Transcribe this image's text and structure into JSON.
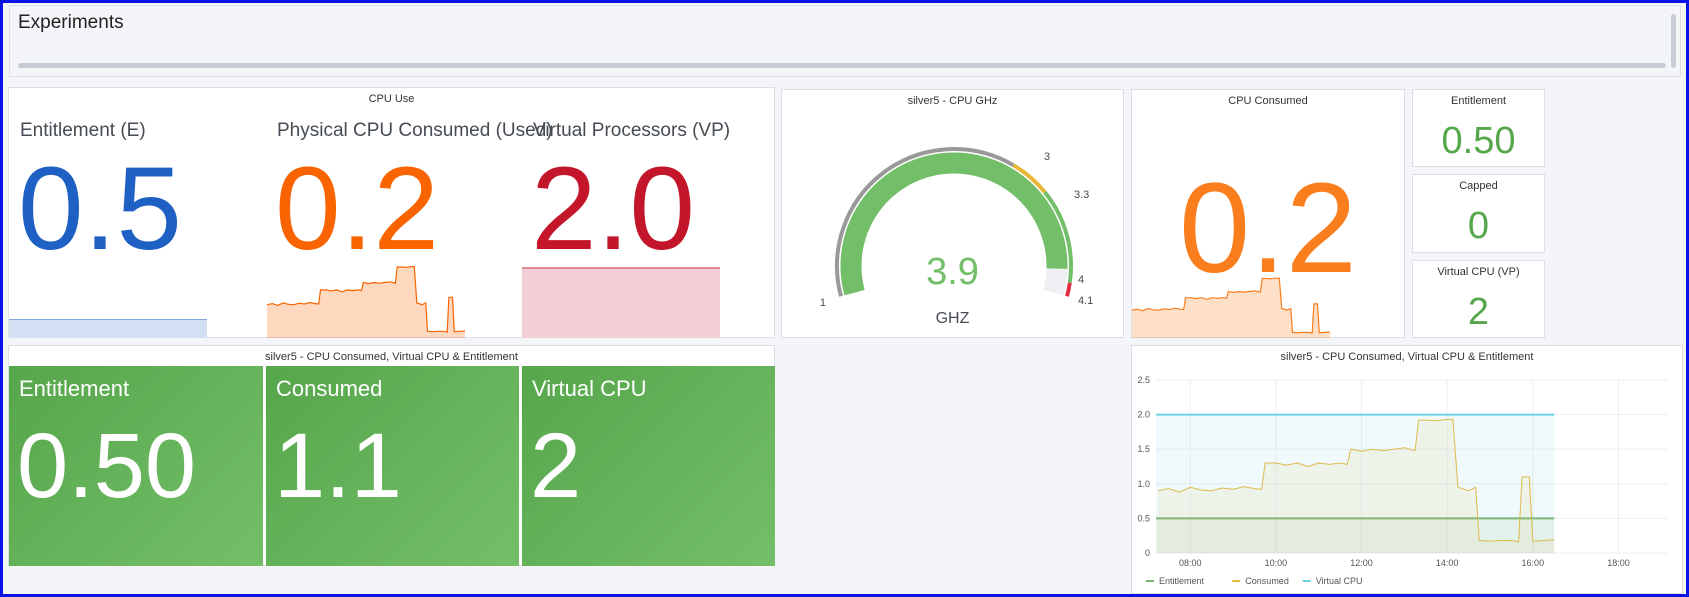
{
  "header": {
    "title": "Experiments"
  },
  "cpu_use": {
    "title": "CPU Use",
    "stats": [
      {
        "label": "Entitlement (E)",
        "value": "0.5",
        "color": "#1f60c4"
      },
      {
        "label": "Physical CPU Consumed (Used)",
        "value": "0.2",
        "color": "#fa6400"
      },
      {
        "label": "Virtual Processors (VP)",
        "value": "2.0",
        "color": "#c4162a"
      }
    ]
  },
  "gauge": {
    "title": "silver5 - CPU GHz",
    "value": "3.9",
    "unit": "GHZ",
    "min": 1,
    "max": 4.1,
    "current": 3.9,
    "thresholds": [
      {
        "from": 1,
        "to": 3,
        "color": "#999999"
      },
      {
        "from": 3,
        "to": 3.3,
        "color": "#eab839"
      },
      {
        "from": 3.3,
        "to": 4,
        "color": "#73bf69"
      },
      {
        "from": 4,
        "to": 4.1,
        "color": "#e02f44"
      }
    ],
    "tick_labels": [
      "1",
      "3",
      "3.3",
      "4",
      "4.1"
    ]
  },
  "consumed_panel": {
    "title": "CPU Consumed",
    "value": "0.2",
    "color": "#fa7e1e"
  },
  "small_stats": [
    {
      "title": "Entitlement",
      "value": "0.50"
    },
    {
      "title": "Capped",
      "value": "0"
    },
    {
      "title": "Virtual CPU (VP)",
      "value": "2"
    }
  ],
  "bottom_stats": {
    "title": "silver5 - CPU Consumed, Virtual CPU & Entitlement",
    "items": [
      {
        "label": "Entitlement",
        "value": "0.50"
      },
      {
        "label": "Consumed",
        "value": "1.1"
      },
      {
        "label": "Virtual CPU",
        "value": "2"
      }
    ]
  },
  "chart_data": {
    "type": "line",
    "title": "silver5 - CPU Consumed, Virtual CPU & Entitlement",
    "x_ticks": [
      "08:00",
      "10:00",
      "12:00",
      "14:00",
      "16:00",
      "18:00"
    ],
    "y_ticks": [
      "0",
      "0.5",
      "1.0",
      "1.5",
      "2.0",
      "2.5"
    ],
    "ylim": [
      0,
      2.5
    ],
    "xlim": [
      "07:12",
      "19:08"
    ],
    "grid": true,
    "legend": "bottom-left",
    "x": [
      "07:15",
      "07:30",
      "07:45",
      "08:00",
      "08:15",
      "08:30",
      "08:45",
      "09:00",
      "09:15",
      "09:30",
      "09:40",
      "09:45",
      "10:00",
      "10:15",
      "10:30",
      "10:45",
      "11:00",
      "11:15",
      "11:30",
      "11:40",
      "11:45",
      "12:00",
      "12:15",
      "12:30",
      "12:45",
      "13:00",
      "13:15",
      "13:20",
      "13:30",
      "13:45",
      "14:00",
      "14:08",
      "14:15",
      "14:30",
      "14:40",
      "14:45",
      "15:00",
      "15:15",
      "15:30",
      "15:40",
      "15:45",
      "15:55",
      "16:00",
      "16:15",
      "16:30"
    ],
    "series": [
      {
        "name": "Entitlement",
        "color": "#7eb26d",
        "values": "const:0.5"
      },
      {
        "name": "Consumed",
        "color": "#eab839",
        "values": [
          0.9,
          0.93,
          0.88,
          0.95,
          0.91,
          0.9,
          0.94,
          0.92,
          0.96,
          0.93,
          0.92,
          1.3,
          1.3,
          1.27,
          1.3,
          1.25,
          1.3,
          1.28,
          1.3,
          1.28,
          1.5,
          1.47,
          1.5,
          1.48,
          1.5,
          1.52,
          1.48,
          1.92,
          1.92,
          1.91,
          1.93,
          1.93,
          0.95,
          0.9,
          0.95,
          0.18,
          0.17,
          0.18,
          0.18,
          0.16,
          1.1,
          1.1,
          0.17,
          0.18,
          0.19
        ]
      },
      {
        "name": "Virtual CPU",
        "color": "#6ed0e0",
        "values": "const:2.0"
      }
    ]
  }
}
